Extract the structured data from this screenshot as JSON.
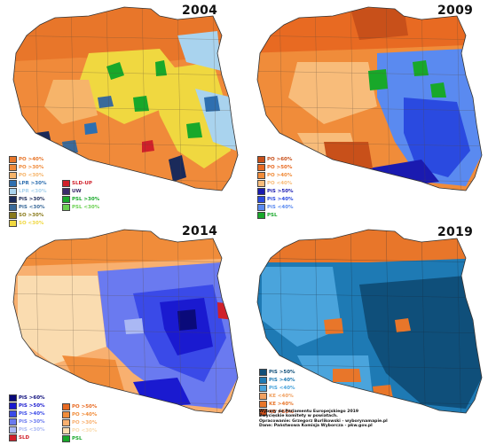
{
  "maps": [
    {
      "year": "2004",
      "legend": [
        {
          "label": "PO >40%",
          "color": "#e8762a"
        },
        {
          "label": "PO >30%",
          "color": "#f08a3a"
        },
        {
          "label": "PO <30%",
          "color": "#f6b46a"
        },
        {
          "label": "LPR >30%",
          "color": "#2e6fb0"
        },
        {
          "label": "LPR <30%",
          "color": "#a9d3ee"
        },
        {
          "label": "PiS >30%",
          "color": "#1a2a5a"
        },
        {
          "label": "PiS <30%",
          "color": "#3a6a9a"
        },
        {
          "label": "SO >30%",
          "color": "#8a7a1a"
        },
        {
          "label": "SO <30%",
          "color": "#f0d840"
        },
        {
          "label": "SLD-UP",
          "color": "#d0202a"
        },
        {
          "label": "UW",
          "color": "#3a2a6a"
        },
        {
          "label": "PSL >30%",
          "color": "#18a82a"
        },
        {
          "label": "PSL <30%",
          "color": "#6ad050"
        }
      ]
    },
    {
      "year": "2009",
      "legend": [
        {
          "label": "PO >60%",
          "color": "#c8501a"
        },
        {
          "label": "PO >50%",
          "color": "#e86a22"
        },
        {
          "label": "PO >40%",
          "color": "#f08c3a"
        },
        {
          "label": "PO <40%",
          "color": "#f8bc7a"
        },
        {
          "label": "PiS >50%",
          "color": "#1a1ab0"
        },
        {
          "label": "PiS >40%",
          "color": "#2a4ae0"
        },
        {
          "label": "PiS <40%",
          "color": "#5a8af0"
        },
        {
          "label": "PSL",
          "color": "#18a82a"
        }
      ]
    },
    {
      "year": "2014",
      "legend_left": [
        {
          "label": "PiS >60%",
          "color": "#0a0a7a"
        },
        {
          "label": "PiS >50%",
          "color": "#1a1ad0"
        },
        {
          "label": "PiS >40%",
          "color": "#3a4ae8"
        },
        {
          "label": "PiS >30%",
          "color": "#6a7af0"
        },
        {
          "label": "PiS <30%",
          "color": "#aab8f4"
        },
        {
          "label": "SLD",
          "color": "#d0202a"
        }
      ],
      "legend_right": [
        {
          "label": "PO >50%",
          "color": "#e86a22"
        },
        {
          "label": "PO >40%",
          "color": "#f08c3a"
        },
        {
          "label": "PO >30%",
          "color": "#f8b070"
        },
        {
          "label": "PO <30%",
          "color": "#fadcb0"
        },
        {
          "label": "PSL",
          "color": "#18a82a"
        }
      ]
    },
    {
      "year": "2019",
      "legend": [
        {
          "label": "PiS >50%",
          "color": "#0f4f7a"
        },
        {
          "label": "PiS >40%",
          "color": "#1e7ab4"
        },
        {
          "label": "PiS <40%",
          "color": "#4aa4dc"
        },
        {
          "label": "KE <40%",
          "color": "#f0a060"
        },
        {
          "label": "KE >40%",
          "color": "#e8762a"
        },
        {
          "label": "KE >50%",
          "color": "#d0501a"
        }
      ],
      "credits": [
        "Wybory do Parlamentu Europejskiego 2019",
        "Zwycięskie komitety w powiatach.",
        "Opracowanie: Grzegorz Burlikowski - wyborynamapie.pl",
        "Dane: Państwowa Komisja Wyborcza - pkw.gov.pl"
      ]
    }
  ]
}
